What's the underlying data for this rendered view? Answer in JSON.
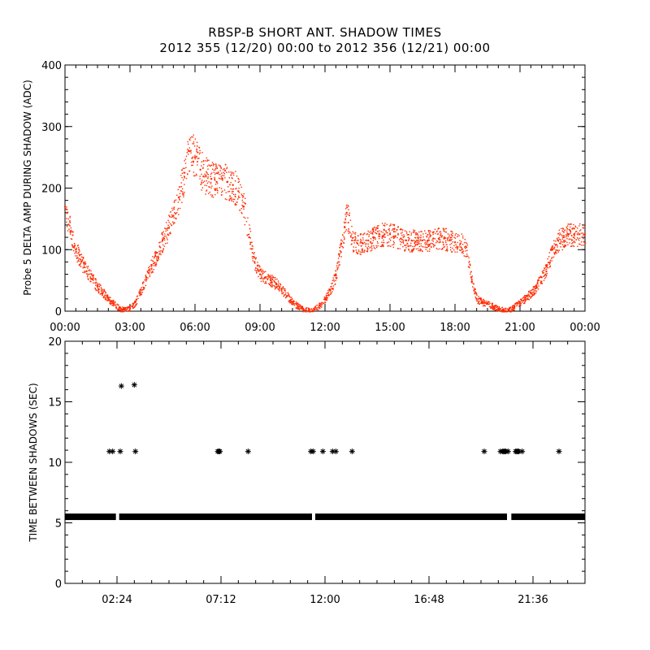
{
  "title": "RBSP-B SHORT ANT. SHADOW TIMES",
  "subtitle": "2012 355 (12/20) 00:00 to 2012 356 (12/21) 00:00",
  "colors": {
    "amp": "#ff2a00",
    "gap": "#000000"
  },
  "chart_data": [
    {
      "type": "scatter",
      "ylabel": "Probe 5 DELTA AMP DURING SHADOW (ADC)",
      "xlim": [
        0,
        24
      ],
      "ylim": [
        0,
        400
      ],
      "x_ticks": [
        "00:00",
        "03:00",
        "06:00",
        "09:00",
        "12:00",
        "15:00",
        "18:00",
        "21:00",
        "00:00"
      ],
      "y_ticks": [
        "0",
        "100",
        "200",
        "300",
        "400"
      ],
      "series": [
        {
          "x": [
            0.0,
            0.25,
            0.5,
            0.75,
            1.0,
            1.25,
            1.5,
            1.75,
            2.0,
            2.25,
            2.5,
            2.75,
            3.0,
            3.25,
            3.5,
            3.75,
            4.0,
            4.25,
            4.5,
            4.75,
            5.0,
            5.25,
            5.5,
            5.75,
            6.0,
            6.25,
            6.5,
            6.75,
            7.0,
            7.25,
            7.5,
            7.75,
            8.0,
            8.25,
            8.5,
            8.75,
            9.0,
            9.25,
            9.5,
            9.75,
            10.0,
            10.25,
            10.5,
            10.75,
            11.0,
            11.25,
            11.5,
            11.75,
            12.0,
            12.25,
            12.5,
            12.75,
            13.0,
            13.25,
            13.5,
            13.75,
            14.0,
            14.25,
            14.5,
            14.75,
            15.0,
            15.25,
            15.5,
            15.75,
            16.0,
            16.25,
            16.5,
            16.75,
            17.0,
            17.25,
            17.5,
            17.75,
            18.0,
            18.25,
            18.5,
            18.75,
            19.0,
            19.25,
            19.5,
            19.75,
            20.0,
            20.25,
            20.5,
            20.75,
            21.0,
            21.25,
            21.5,
            21.75,
            22.0,
            22.25,
            22.5,
            22.75,
            23.0,
            23.25,
            23.5,
            23.75,
            24.0
          ],
          "y": [
            170,
            130,
            100,
            80,
            65,
            52,
            40,
            30,
            20,
            12,
            5,
            3,
            5,
            15,
            35,
            55,
            75,
            95,
            115,
            135,
            155,
            185,
            225,
            260,
            250,
            230,
            220,
            215,
            210,
            215,
            210,
            205,
            195,
            170,
            120,
            80,
            60,
            55,
            50,
            45,
            35,
            25,
            15,
            8,
            3,
            2,
            4,
            10,
            20,
            35,
            60,
            110,
            160,
            115,
            110,
            110,
            115,
            120,
            125,
            125,
            125,
            122,
            118,
            115,
            115,
            115,
            115,
            115,
            118,
            118,
            118,
            115,
            112,
            110,
            105,
            55,
            20,
            15,
            12,
            8,
            4,
            2,
            3,
            8,
            15,
            22,
            30,
            40,
            55,
            75,
            100,
            115,
            120,
            125,
            125,
            125,
            125
          ]
        }
      ]
    },
    {
      "type": "scatter",
      "ylabel": "TIME BETWEEN SHADOWS (SEC)",
      "xlim": [
        0,
        24
      ],
      "ylim": [
        0,
        20
      ],
      "x_ticks": [
        "02:24",
        "07:12",
        "12:00",
        "16:48",
        "21:36"
      ],
      "y_ticks": [
        "0",
        "5",
        "10",
        "15",
        "20"
      ],
      "baseline": {
        "y": 5.5,
        "segments": [
          [
            0.0,
            2.35
          ],
          [
            2.5,
            11.4
          ],
          [
            11.55,
            20.4
          ],
          [
            20.6,
            24.0
          ]
        ]
      },
      "series": [
        {
          "x": [
            2.05,
            2.2,
            2.55,
            2.6,
            3.2,
            3.25,
            7.05,
            7.1,
            7.15,
            8.45,
            11.35,
            11.45,
            11.9,
            12.35,
            12.5,
            13.25,
            19.35,
            20.1,
            20.2,
            20.25,
            20.3,
            20.35,
            20.45,
            20.8,
            20.85,
            20.9,
            20.95,
            21.1,
            22.8
          ],
          "y": [
            10.9,
            10.9,
            10.9,
            16.3,
            16.4,
            10.9,
            10.9,
            10.9,
            10.9,
            10.9,
            10.9,
            10.9,
            10.9,
            10.9,
            10.9,
            10.9,
            10.9,
            10.9,
            10.9,
            10.9,
            10.9,
            10.9,
            10.9,
            10.9,
            10.9,
            10.9,
            10.9,
            10.9,
            10.9
          ]
        }
      ]
    }
  ]
}
